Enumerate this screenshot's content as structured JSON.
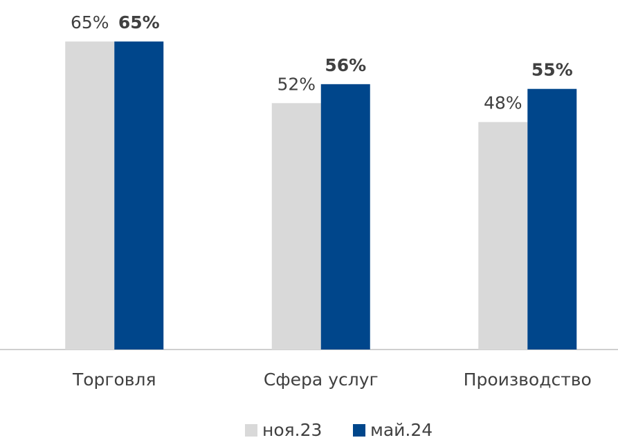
{
  "chart_data": {
    "type": "bar",
    "categories": [
      "Торговля",
      "Сфера услуг",
      "Производство"
    ],
    "series": [
      {
        "name": "ноя.23",
        "color": "#d9d9d9",
        "values": [
          65,
          52,
          48
        ],
        "value_labels": [
          "65%",
          "52%",
          "48%"
        ]
      },
      {
        "name": "май.24",
        "color": "#00468b",
        "values": [
          65,
          56,
          55
        ],
        "value_labels": [
          "65%",
          "56%",
          "55%"
        ]
      }
    ]
  }
}
